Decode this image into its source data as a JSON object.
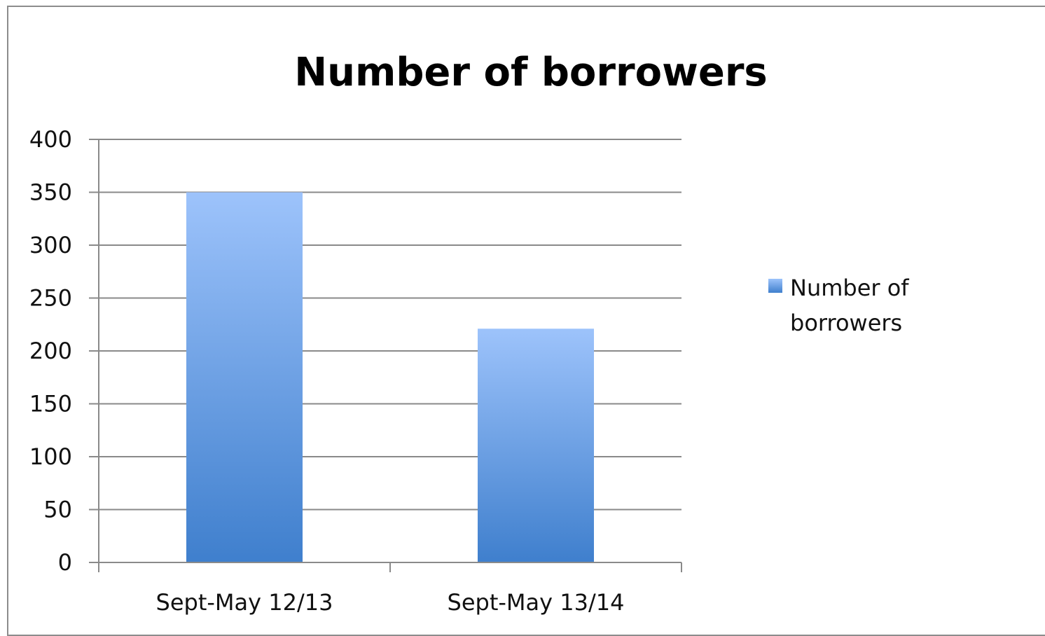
{
  "chart_data": {
    "type": "bar",
    "title": "Number of borrowers",
    "categories": [
      "Sept-May 12/13",
      "Sept-May 13/14"
    ],
    "series": [
      {
        "name": "Number of borrowers",
        "values": [
          350,
          221
        ]
      }
    ],
    "ylim": [
      0,
      400
    ],
    "yticks": [
      0,
      50,
      100,
      150,
      200,
      250,
      300,
      350,
      400
    ],
    "grid": true,
    "legend": {
      "position": "right",
      "lines": [
        "Number of",
        "borrowers"
      ]
    },
    "colors": {
      "bar_top": "#9dc3fb",
      "bar_bottom": "#3f7fcd",
      "grid": "#8a8a8a"
    }
  }
}
